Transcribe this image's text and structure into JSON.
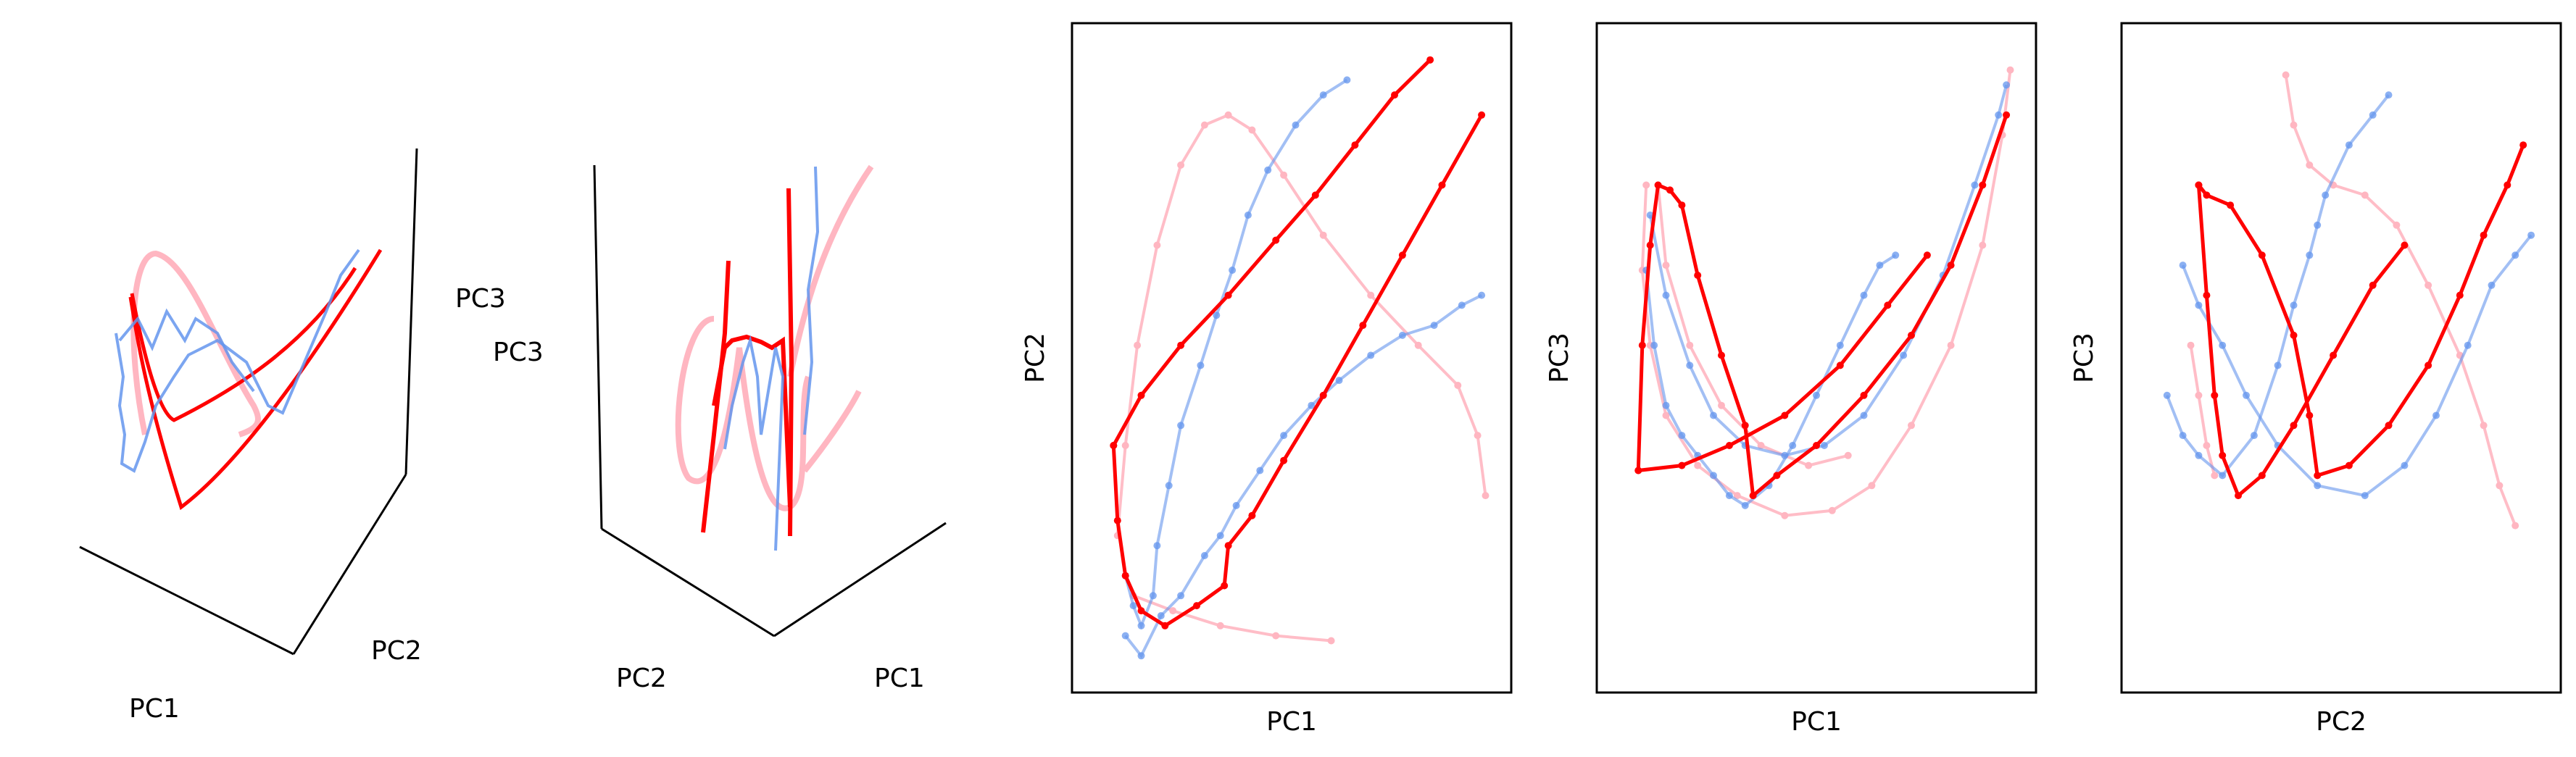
{
  "colors": {
    "blue": "#6495ED",
    "red": "#FF0000",
    "pink": "#FFB6C1",
    "frame": "#000000"
  },
  "panel_3d_1": {
    "axis_labels": {
      "pc1": "PC1",
      "pc2": "PC2",
      "pc3": "PC3"
    }
  },
  "panel_3d_2": {
    "axis_labels": {
      "pc1": "PC1",
      "pc2": "PC2",
      "pc3": "PC3"
    }
  },
  "chart_data": [
    {
      "type": "line",
      "title": "",
      "xlabel": "PC1",
      "ylabel": "PC2",
      "ticks": "none",
      "series": [
        {
          "color": "pink",
          "points": [
            [
              0.06,
              0.02
            ],
            [
              0.08,
              0.2
            ],
            [
              0.11,
              0.4
            ],
            [
              0.16,
              0.6
            ],
            [
              0.22,
              0.76
            ],
            [
              0.28,
              0.84
            ],
            [
              0.34,
              0.86
            ],
            [
              0.4,
              0.83
            ],
            [
              0.48,
              0.74
            ],
            [
              0.58,
              0.62
            ],
            [
              0.7,
              0.5
            ],
            [
              0.82,
              0.4
            ],
            [
              0.92,
              0.32
            ],
            [
              0.97,
              0.22
            ],
            [
              0.99,
              0.1
            ]
          ]
        },
        {
          "color": "pink",
          "points": [
            [
              0.1,
              -0.1
            ],
            [
              0.2,
              -0.13
            ],
            [
              0.32,
              -0.16
            ],
            [
              0.46,
              -0.18
            ],
            [
              0.6,
              -0.19
            ]
          ]
        },
        {
          "color": "red",
          "points": [
            [
              0.05,
              0.2
            ],
            [
              0.12,
              0.3
            ],
            [
              0.22,
              0.4
            ],
            [
              0.34,
              0.5
            ],
            [
              0.46,
              0.61
            ],
            [
              0.56,
              0.7
            ],
            [
              0.66,
              0.8
            ],
            [
              0.76,
              0.9
            ],
            [
              0.85,
              0.97
            ]
          ]
        },
        {
          "color": "red",
          "points": [
            [
              0.05,
              0.2
            ],
            [
              0.06,
              0.05
            ],
            [
              0.08,
              -0.06
            ],
            [
              0.12,
              -0.13
            ],
            [
              0.18,
              -0.16
            ],
            [
              0.26,
              -0.12
            ],
            [
              0.33,
              -0.08
            ],
            [
              0.34,
              0.0
            ],
            [
              0.4,
              0.06
            ],
            [
              0.48,
              0.17
            ],
            [
              0.58,
              0.3
            ],
            [
              0.68,
              0.44
            ],
            [
              0.78,
              0.58
            ],
            [
              0.88,
              0.72
            ],
            [
              0.98,
              0.86
            ]
          ]
        },
        {
          "color": "blue",
          "points": [
            [
              0.08,
              -0.06
            ],
            [
              0.1,
              -0.12
            ],
            [
              0.12,
              -0.16
            ],
            [
              0.15,
              -0.1
            ],
            [
              0.16,
              0.0
            ],
            [
              0.19,
              0.12
            ],
            [
              0.22,
              0.24
            ],
            [
              0.27,
              0.36
            ],
            [
              0.31,
              0.46
            ],
            [
              0.35,
              0.55
            ],
            [
              0.39,
              0.66
            ],
            [
              0.44,
              0.75
            ],
            [
              0.51,
              0.84
            ],
            [
              0.58,
              0.9
            ],
            [
              0.64,
              0.93
            ]
          ]
        },
        {
          "color": "blue",
          "points": [
            [
              0.08,
              -0.18
            ],
            [
              0.12,
              -0.22
            ],
            [
              0.17,
              -0.14
            ],
            [
              0.22,
              -0.1
            ],
            [
              0.28,
              -0.02
            ],
            [
              0.32,
              0.02
            ],
            [
              0.36,
              0.08
            ],
            [
              0.42,
              0.15
            ],
            [
              0.48,
              0.22
            ],
            [
              0.55,
              0.28
            ],
            [
              0.62,
              0.33
            ],
            [
              0.7,
              0.38
            ],
            [
              0.78,
              0.42
            ],
            [
              0.86,
              0.44
            ],
            [
              0.93,
              0.48
            ],
            [
              0.98,
              0.5
            ]
          ]
        }
      ]
    },
    {
      "type": "line",
      "title": "",
      "xlabel": "PC1",
      "ylabel": "PC3",
      "ticks": "none",
      "series": [
        {
          "color": "pink",
          "points": [
            [
              0.07,
              0.72
            ],
            [
              0.06,
              0.55
            ],
            [
              0.08,
              0.4
            ],
            [
              0.12,
              0.26
            ],
            [
              0.2,
              0.16
            ],
            [
              0.3,
              0.1
            ],
            [
              0.42,
              0.06
            ],
            [
              0.54,
              0.07
            ],
            [
              0.64,
              0.12
            ],
            [
              0.74,
              0.24
            ],
            [
              0.84,
              0.4
            ],
            [
              0.92,
              0.6
            ],
            [
              0.97,
              0.82
            ],
            [
              0.99,
              0.95
            ]
          ]
        },
        {
          "color": "pink",
          "points": [
            [
              0.1,
              0.72
            ],
            [
              0.12,
              0.56
            ],
            [
              0.18,
              0.4
            ],
            [
              0.26,
              0.28
            ],
            [
              0.36,
              0.2
            ],
            [
              0.48,
              0.16
            ],
            [
              0.58,
              0.18
            ]
          ]
        },
        {
          "color": "red",
          "points": [
            [
              0.05,
              0.15
            ],
            [
              0.06,
              0.4
            ],
            [
              0.08,
              0.6
            ],
            [
              0.1,
              0.72
            ],
            [
              0.13,
              0.71
            ],
            [
              0.16,
              0.68
            ],
            [
              0.2,
              0.54
            ],
            [
              0.26,
              0.38
            ],
            [
              0.32,
              0.24
            ],
            [
              0.34,
              0.1
            ],
            [
              0.4,
              0.14
            ],
            [
              0.5,
              0.2
            ],
            [
              0.62,
              0.3
            ],
            [
              0.74,
              0.42
            ],
            [
              0.84,
              0.56
            ],
            [
              0.92,
              0.72
            ],
            [
              0.98,
              0.86
            ]
          ]
        },
        {
          "color": "red",
          "points": [
            [
              0.05,
              0.15
            ],
            [
              0.16,
              0.16
            ],
            [
              0.28,
              0.2
            ],
            [
              0.42,
              0.26
            ],
            [
              0.56,
              0.36
            ],
            [
              0.68,
              0.48
            ],
            [
              0.78,
              0.58
            ]
          ]
        },
        {
          "color": "blue",
          "points": [
            [
              0.07,
              0.55
            ],
            [
              0.09,
              0.4
            ],
            [
              0.12,
              0.28
            ],
            [
              0.16,
              0.22
            ],
            [
              0.2,
              0.18
            ],
            [
              0.24,
              0.14
            ],
            [
              0.28,
              0.1
            ],
            [
              0.32,
              0.08
            ],
            [
              0.38,
              0.12
            ],
            [
              0.44,
              0.2
            ],
            [
              0.5,
              0.3
            ],
            [
              0.56,
              0.4
            ],
            [
              0.62,
              0.5
            ],
            [
              0.66,
              0.56
            ],
            [
              0.7,
              0.58
            ]
          ]
        },
        {
          "color": "blue",
          "points": [
            [
              0.08,
              0.66
            ],
            [
              0.12,
              0.5
            ],
            [
              0.18,
              0.36
            ],
            [
              0.24,
              0.26
            ],
            [
              0.32,
              0.2
            ],
            [
              0.42,
              0.18
            ],
            [
              0.52,
              0.2
            ],
            [
              0.62,
              0.26
            ],
            [
              0.72,
              0.38
            ],
            [
              0.82,
              0.54
            ],
            [
              0.9,
              0.72
            ],
            [
              0.96,
              0.86
            ],
            [
              0.98,
              0.92
            ]
          ]
        }
      ]
    },
    {
      "type": "line",
      "title": "",
      "xlabel": "PC2",
      "ylabel": "PC3",
      "ticks": "none",
      "series": [
        {
          "color": "pink",
          "points": [
            [
              0.36,
              0.94
            ],
            [
              0.38,
              0.84
            ],
            [
              0.42,
              0.76
            ],
            [
              0.48,
              0.72
            ],
            [
              0.56,
              0.7
            ],
            [
              0.64,
              0.64
            ],
            [
              0.72,
              0.52
            ],
            [
              0.8,
              0.38
            ],
            [
              0.86,
              0.24
            ],
            [
              0.9,
              0.12
            ],
            [
              0.94,
              0.04
            ]
          ]
        },
        {
          "color": "pink",
          "points": [
            [
              0.12,
              0.4
            ],
            [
              0.14,
              0.3
            ],
            [
              0.16,
              0.2
            ],
            [
              0.18,
              0.14
            ]
          ]
        },
        {
          "color": "red",
          "points": [
            [
              0.14,
              0.72
            ],
            [
              0.16,
              0.7
            ],
            [
              0.22,
              0.68
            ],
            [
              0.3,
              0.58
            ],
            [
              0.38,
              0.42
            ],
            [
              0.42,
              0.26
            ],
            [
              0.44,
              0.14
            ],
            [
              0.52,
              0.16
            ],
            [
              0.62,
              0.24
            ],
            [
              0.72,
              0.36
            ],
            [
              0.8,
              0.5
            ],
            [
              0.86,
              0.62
            ],
            [
              0.92,
              0.72
            ],
            [
              0.96,
              0.8
            ]
          ]
        },
        {
          "color": "red",
          "points": [
            [
              0.14,
              0.72
            ],
            [
              0.16,
              0.5
            ],
            [
              0.18,
              0.3
            ],
            [
              0.2,
              0.18
            ],
            [
              0.24,
              0.1
            ],
            [
              0.3,
              0.14
            ],
            [
              0.38,
              0.24
            ],
            [
              0.48,
              0.38
            ],
            [
              0.58,
              0.52
            ],
            [
              0.66,
              0.6
            ]
          ]
        },
        {
          "color": "blue",
          "points": [
            [
              0.06,
              0.3
            ],
            [
              0.1,
              0.22
            ],
            [
              0.14,
              0.18
            ],
            [
              0.2,
              0.14
            ],
            [
              0.28,
              0.22
            ],
            [
              0.34,
              0.36
            ],
            [
              0.38,
              0.48
            ],
            [
              0.42,
              0.58
            ],
            [
              0.44,
              0.64
            ],
            [
              0.46,
              0.7
            ],
            [
              0.52,
              0.8
            ],
            [
              0.58,
              0.86
            ],
            [
              0.62,
              0.9
            ]
          ]
        },
        {
          "color": "blue",
          "points": [
            [
              0.1,
              0.56
            ],
            [
              0.14,
              0.48
            ],
            [
              0.2,
              0.4
            ],
            [
              0.26,
              0.3
            ],
            [
              0.34,
              0.2
            ],
            [
              0.44,
              0.12
            ],
            [
              0.56,
              0.1
            ],
            [
              0.66,
              0.16
            ],
            [
              0.74,
              0.26
            ],
            [
              0.82,
              0.4
            ],
            [
              0.88,
              0.52
            ],
            [
              0.94,
              0.58
            ],
            [
              0.98,
              0.62
            ]
          ]
        }
      ]
    }
  ]
}
